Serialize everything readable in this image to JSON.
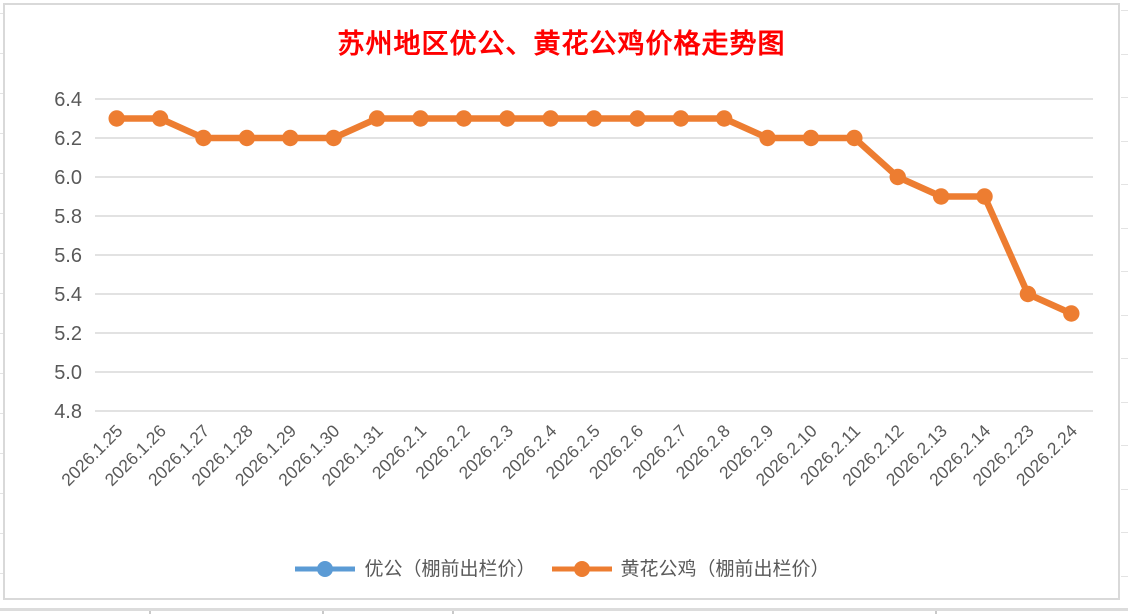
{
  "window": {
    "background_color": "#FFFFFF",
    "chart_border_color": "#D9D9D9"
  },
  "chart_data": {
    "type": "line",
    "title": "苏州地区优公、黄花公鸡价格走势图",
    "title_color": "#FF0000",
    "categories": [
      "2026.1.25",
      "2026.1.26",
      "2026.1.27",
      "2026.1.28",
      "2026.1.29",
      "2026.1.30",
      "2026.1.31",
      "2026.2.1",
      "2026.2.2",
      "2026.2.3",
      "2026.2.4",
      "2026.2.5",
      "2026.2.6",
      "2026.2.7",
      "2026.2.8",
      "2026.2.9",
      "2026.2.10",
      "2026.2.11",
      "2026.2.12",
      "2026.2.13",
      "2026.2.14",
      "2026.2.23",
      "2026.2.24"
    ],
    "series": [
      {
        "name": "优公（棚前出栏价）",
        "color": "#5B9BD5",
        "values": []
      },
      {
        "name": "黄花公鸡（棚前出栏价）",
        "color": "#ED7D31",
        "values": [
          6.3,
          6.3,
          6.2,
          6.2,
          6.2,
          6.2,
          6.3,
          6.3,
          6.3,
          6.3,
          6.3,
          6.3,
          6.3,
          6.3,
          6.3,
          6.2,
          6.2,
          6.2,
          6.0,
          5.9,
          5.9,
          5.4,
          5.3
        ]
      }
    ],
    "xlabel": "",
    "ylabel": "",
    "ylim": [
      4.8,
      6.4
    ],
    "ytick_step": 0.2,
    "ytick_labels": [
      "4.8",
      "5.0",
      "5.2",
      "5.4",
      "5.6",
      "5.8",
      "6.0",
      "6.2",
      "6.4"
    ],
    "grid": true,
    "gridline_color": "#D9D9D9",
    "axis_label_color": "#595959",
    "legend_position": "bottom"
  }
}
